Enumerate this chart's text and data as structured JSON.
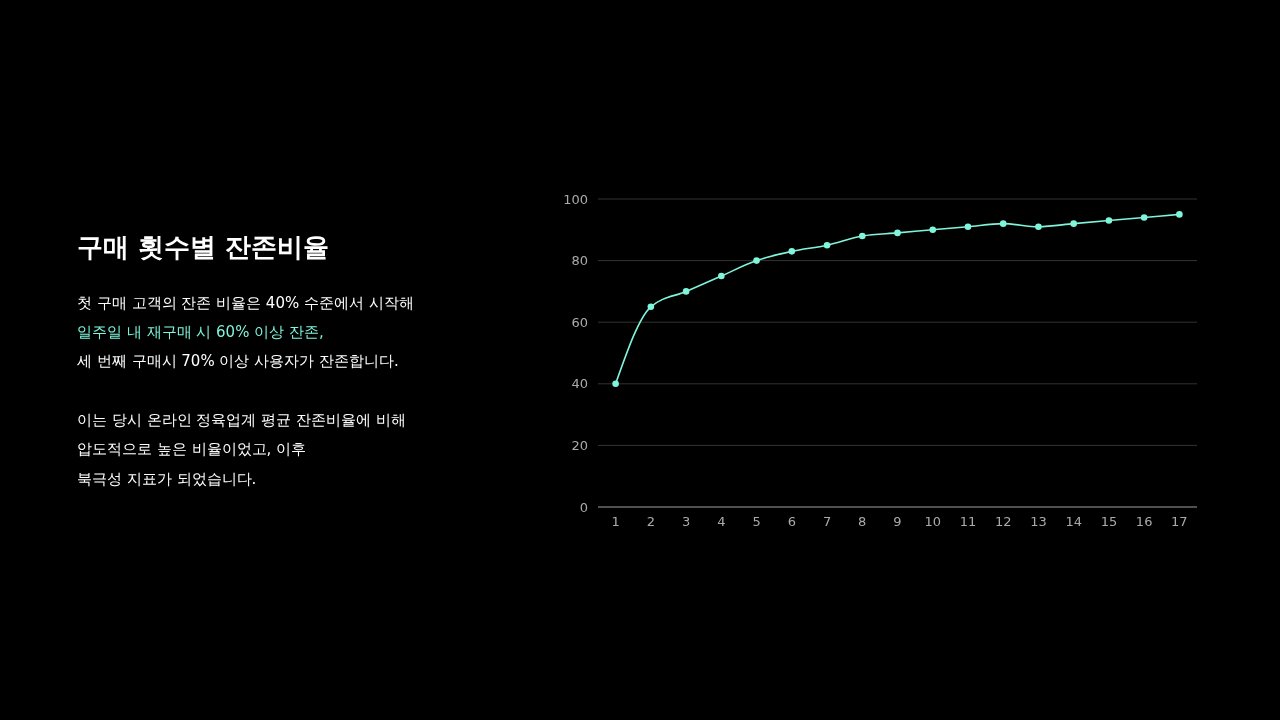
{
  "chart_data": {
    "type": "line",
    "title": "구매 횟수별 잔존비율",
    "annotations": [
      "첫 구매 고객의 잔존 비율은 40% 수준에서 시작해",
      "일주일 내 재구매 시 60% 이상 잔존,",
      "세 번째 구매시 70% 이상 사용자가 잔존합니다.",
      "이는 당시 온라인 정육업계 평균 잔존비율에 비해",
      "압도적으로 높은 비율이었고, 이후",
      "북극성 지표가 되었습니다."
    ],
    "x": [
      1,
      2,
      3,
      4,
      5,
      6,
      7,
      8,
      9,
      10,
      11,
      12,
      13,
      14,
      15,
      16,
      17
    ],
    "xlim": [
      0.5,
      17.5
    ],
    "xticks": [
      1,
      2,
      3,
      4,
      5,
      6,
      7,
      8,
      9,
      10,
      11,
      12,
      13,
      14,
      15,
      16,
      17
    ],
    "series": [
      {
        "color": "#7ff5dc",
        "values": [
          40,
          65,
          70,
          75,
          80,
          83,
          85,
          88,
          89,
          90,
          91,
          92,
          91,
          92,
          93,
          94,
          95
        ]
      }
    ],
    "ylim": [
      0,
      100
    ],
    "yticks": [
      0,
      20,
      40,
      60,
      80,
      100
    ],
    "grid": "y",
    "marker": "circle",
    "line_style": "solid"
  }
}
